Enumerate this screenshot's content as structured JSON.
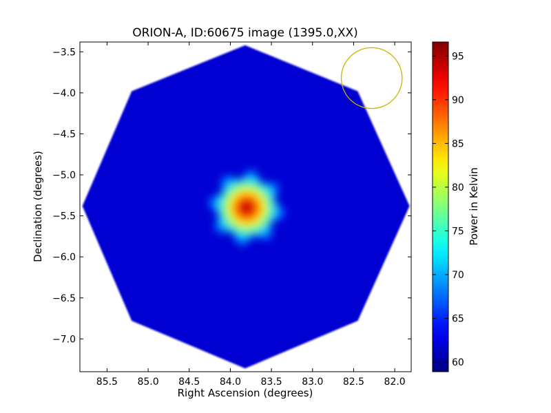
{
  "chart_data": {
    "type": "heatmap",
    "title": "ORION-A, ID:60675 image (1395.0,XX)",
    "xlabel": "Right Ascension (degrees)",
    "ylabel": "Declination (degrees)",
    "xlim": [
      85.83,
      81.8
    ],
    "ylim": [
      -7.4,
      -3.38
    ],
    "x_axis_inverted": true,
    "x_ticks": [
      85.5,
      85.0,
      84.5,
      84.0,
      83.5,
      83.0,
      82.5,
      82.0
    ],
    "x_tick_labels": [
      "85.5",
      "85.0",
      "84.5",
      "84.0",
      "83.5",
      "83.0",
      "82.5",
      "82.0"
    ],
    "y_ticks": [
      -3.5,
      -4.0,
      -4.5,
      -5.0,
      -5.5,
      -6.0,
      -6.5,
      -7.0
    ],
    "y_tick_labels": [
      "−3.5",
      "−4.0",
      "−4.5",
      "−5.0",
      "−5.5",
      "−6.0",
      "−6.5",
      "−7.0"
    ],
    "colorbar": {
      "label": "Power in Kelvin",
      "min": 58.9,
      "max": 96.6,
      "ticks": [
        60,
        65,
        70,
        75,
        80,
        85,
        90,
        95
      ],
      "tick_labels": [
        "60",
        "65",
        "70",
        "75",
        "80",
        "85",
        "90",
        "95"
      ],
      "colormap": "jet"
    },
    "map_outline_radec": [
      [
        83.82,
        -3.42
      ],
      [
        85.2,
        -3.98
      ],
      [
        85.8,
        -5.38
      ],
      [
        85.2,
        -6.78
      ],
      [
        83.82,
        -7.36
      ],
      [
        82.45,
        -6.78
      ],
      [
        81.82,
        -5.38
      ],
      [
        82.45,
        -3.98
      ]
    ],
    "background_level_kelvin": 62,
    "peak": {
      "ra": 83.8,
      "dec": -5.4,
      "value_kelvin": 96
    },
    "source_extent_deg": 0.55,
    "beam_circle": {
      "ra": 82.28,
      "dec": -3.82,
      "radius_deg": 0.37,
      "color": "#c8b400"
    },
    "grid": false,
    "legend": "none"
  }
}
